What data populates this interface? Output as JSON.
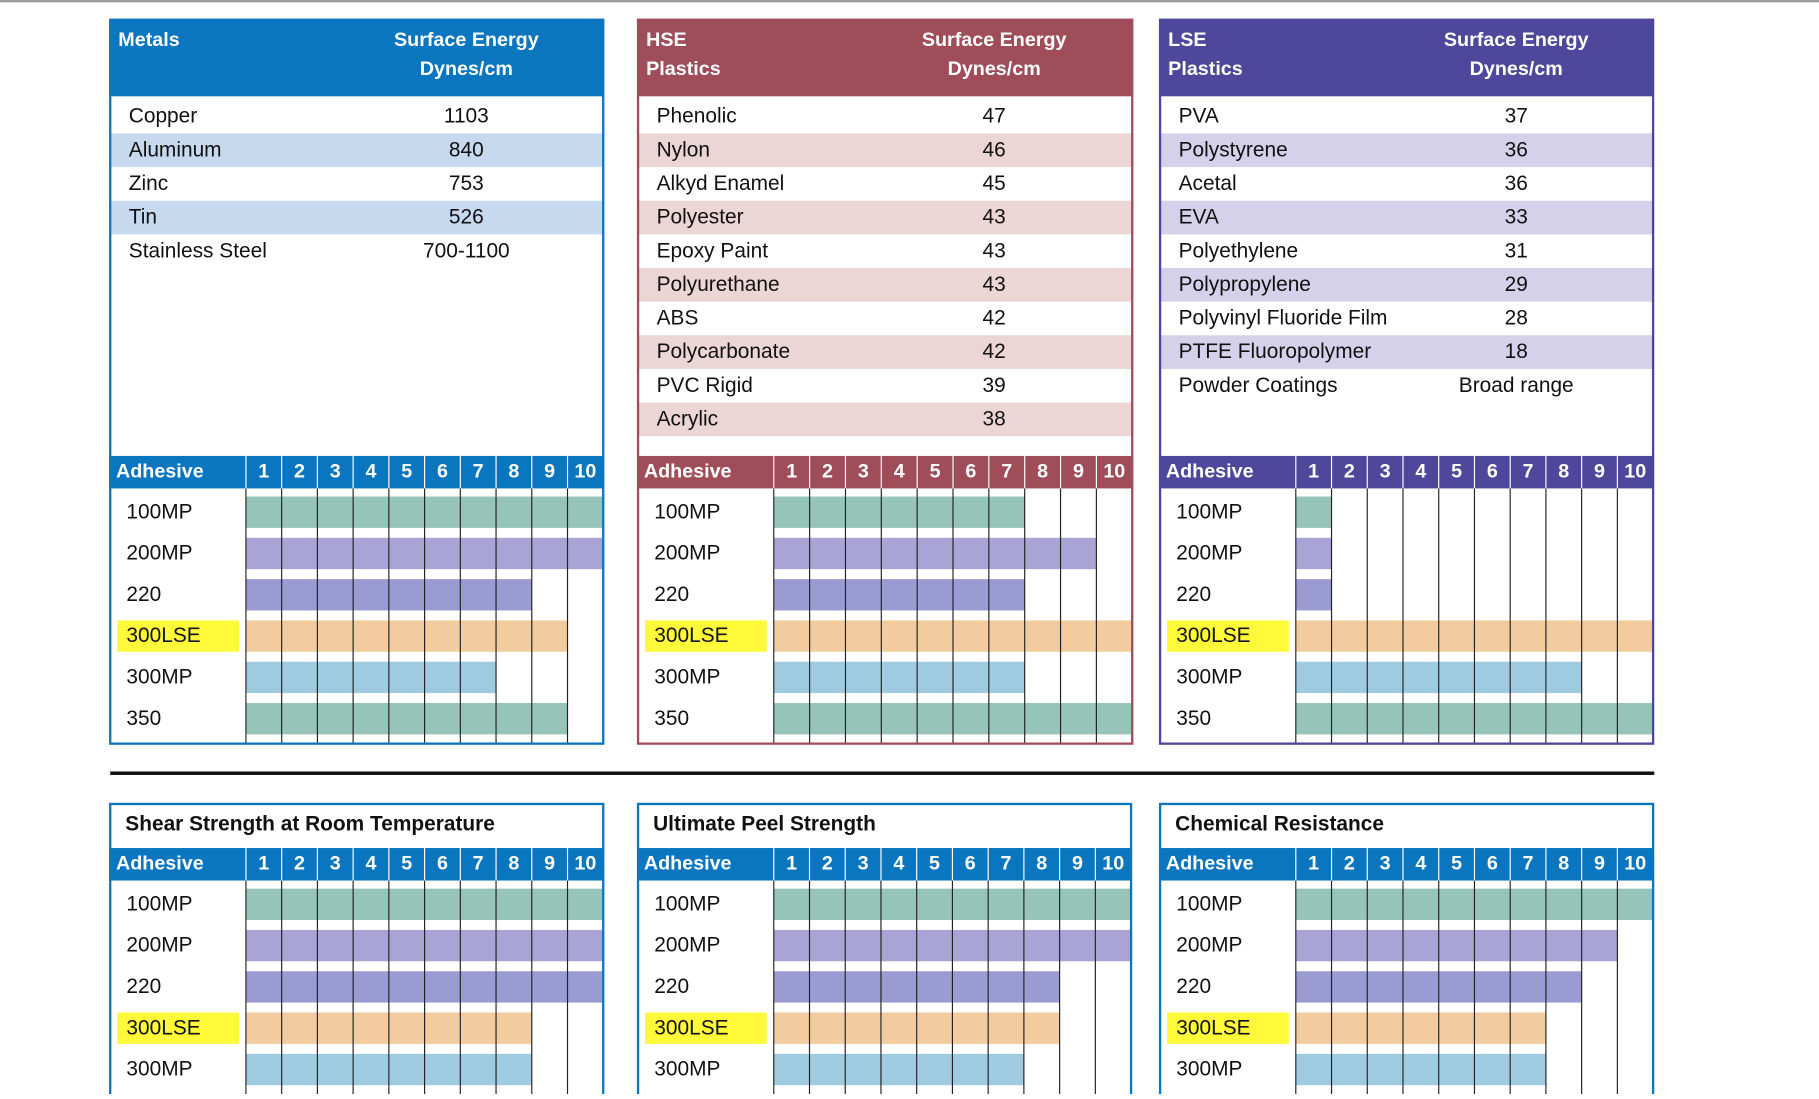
{
  "adhesive_header": "Adhesive",
  "scale": [
    1,
    2,
    3,
    4,
    5,
    6,
    7,
    8,
    9,
    10
  ],
  "adhesive_colors": [
    "#96c4b8",
    "#aaa4d6",
    "#9a9bd2",
    "#f2cc9f",
    "#9fcbe0",
    "#96c4b8"
  ],
  "highlight_index": 3,
  "top_panels": [
    {
      "title": [
        "Metals"
      ],
      "value_header": [
        "Surface Energy",
        "Dynes/cm"
      ],
      "color": "#0a76c0",
      "row_shade": "#c7d9ef",
      "rows": [
        [
          "Copper",
          1103
        ],
        [
          "Aluminum",
          840
        ],
        [
          "Zinc",
          753
        ],
        [
          "Tin",
          526
        ],
        [
          "Stainless Steel",
          "700-1100"
        ]
      ],
      "ratings": {
        "adhesives": [
          "100MP",
          "200MP",
          "220",
          "300LSE",
          "300MP",
          "350"
        ],
        "values": [
          10,
          10,
          8,
          9,
          7,
          9
        ]
      }
    },
    {
      "title": [
        "HSE",
        "Plastics"
      ],
      "value_header": [
        "Surface Energy",
        "Dynes/cm"
      ],
      "color": "#a04d5a",
      "row_shade": "#ebd5d5",
      "rows": [
        [
          "Phenolic",
          47
        ],
        [
          "Nylon",
          46
        ],
        [
          "Alkyd Enamel",
          45
        ],
        [
          "Polyester",
          43
        ],
        [
          "Epoxy Paint",
          43
        ],
        [
          "Polyurethane",
          43
        ],
        [
          "ABS",
          42
        ],
        [
          "Polycarbonate",
          42
        ],
        [
          "PVC Rigid",
          39
        ],
        [
          "Acrylic",
          38
        ]
      ],
      "ratings": {
        "adhesives": [
          "100MP",
          "200MP",
          "220",
          "300LSE",
          "300MP",
          "350"
        ],
        "values": [
          7,
          9,
          7,
          10,
          7,
          10
        ]
      }
    },
    {
      "title": [
        "LSE",
        "Plastics"
      ],
      "value_header": [
        "Surface Energy",
        "Dynes/cm"
      ],
      "color": "#4f479c",
      "row_shade": "#d5d1ea",
      "rows": [
        [
          "PVA",
          37
        ],
        [
          "Polystyrene",
          36
        ],
        [
          "Acetal",
          36
        ],
        [
          "EVA",
          33
        ],
        [
          "Polyethylene",
          31
        ],
        [
          "Polypropylene",
          29
        ],
        [
          "Polyvinyl Fluoride Film",
          28
        ],
        [
          "PTFE Fluoropolymer",
          18
        ],
        [
          "Powder Coatings",
          "Broad range"
        ]
      ],
      "ratings": {
        "adhesives": [
          "100MP",
          "200MP",
          "220",
          "300LSE",
          "300MP",
          "350"
        ],
        "values": [
          1,
          1,
          1,
          10,
          8,
          10
        ]
      }
    }
  ],
  "bottom_panels": [
    {
      "title": "Shear Strength at Room Temperature",
      "color": "#0a76c0",
      "ratings": {
        "adhesives": [
          "100MP",
          "200MP",
          "220",
          "300LSE",
          "300MP"
        ],
        "values": [
          10,
          10,
          10,
          8,
          8
        ]
      }
    },
    {
      "title": "Ultimate Peel Strength",
      "color": "#0a76c0",
      "ratings": {
        "adhesives": [
          "100MP",
          "200MP",
          "220",
          "300LSE",
          "300MP"
        ],
        "values": [
          10,
          10,
          8,
          8,
          7
        ]
      }
    },
    {
      "title": "Chemical Resistance",
      "color": "#0a76c0",
      "ratings": {
        "adhesives": [
          "100MP",
          "200MP",
          "220",
          "300LSE",
          "300MP"
        ],
        "values": [
          10,
          9,
          8,
          7,
          7
        ]
      }
    }
  ]
}
